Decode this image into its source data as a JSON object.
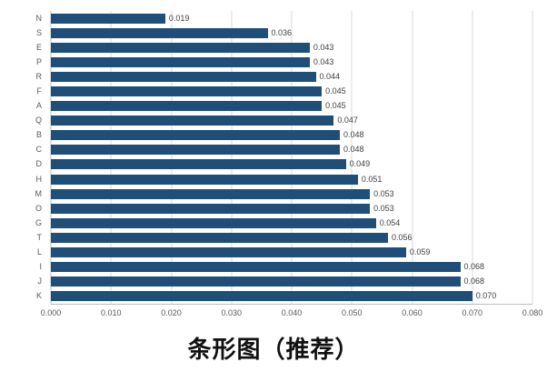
{
  "title": "条形图（推荐）",
  "colors": {
    "bar": "#1F4E79",
    "gridline": "#D9D9D9",
    "axis": "#BFBFBF",
    "tick_text": "#595959",
    "value_text": "#404040",
    "title_text": "#111111"
  },
  "chart_data": {
    "type": "bar",
    "orientation": "horizontal",
    "title": "条形图（推荐）",
    "xlabel": "",
    "ylabel": "",
    "grid": true,
    "legend": "none",
    "xlim": [
      0,
      0.08
    ],
    "x_ticks": [
      "0.000",
      "0.010",
      "0.020",
      "0.030",
      "0.040",
      "0.050",
      "0.060",
      "0.070",
      "0.080"
    ],
    "categories_top_to_bottom": [
      "N",
      "S",
      "E",
      "P",
      "R",
      "F",
      "A",
      "Q",
      "B",
      "C",
      "D",
      "H",
      "M",
      "O",
      "G",
      "T",
      "L",
      "I",
      "J",
      "K"
    ],
    "values": [
      0.019,
      0.036,
      0.043,
      0.043,
      0.044,
      0.045,
      0.045,
      0.047,
      0.048,
      0.048,
      0.049,
      0.051,
      0.053,
      0.053,
      0.054,
      0.056,
      0.059,
      0.068,
      0.068,
      0.07
    ],
    "value_labels": [
      "0.019",
      "0.036",
      "0.043",
      "0.043",
      "0.044",
      "0.045",
      "0.045",
      "0.047",
      "0.048",
      "0.048",
      "0.049",
      "0.051",
      "0.053",
      "0.053",
      "0.054",
      "0.056",
      "0.059",
      "0.068",
      "0.068",
      "0.070"
    ]
  }
}
